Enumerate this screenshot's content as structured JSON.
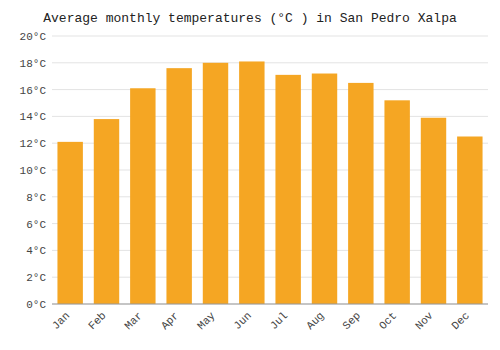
{
  "chart_data": {
    "type": "bar",
    "title": "Average monthly temperatures (°C ) in San Pedro Xalpa",
    "categories": [
      "Jan",
      "Feb",
      "Mar",
      "Apr",
      "May",
      "Jun",
      "Jul",
      "Aug",
      "Sep",
      "Oct",
      "Nov",
      "Dec"
    ],
    "values": [
      12.1,
      13.8,
      16.1,
      17.6,
      18.0,
      18.1,
      17.1,
      17.2,
      16.5,
      15.2,
      13.9,
      12.5
    ],
    "color": "#F5A623",
    "ylim": [
      0,
      20
    ],
    "yticks": [
      {
        "value": 0,
        "label": "0°C"
      },
      {
        "value": 2,
        "label": "2°C"
      },
      {
        "value": 4,
        "label": "4°C"
      },
      {
        "value": 6,
        "label": "6°C"
      },
      {
        "value": 8,
        "label": "8°C"
      },
      {
        "value": 10,
        "label": "10°C"
      },
      {
        "value": 12,
        "label": "12°C"
      },
      {
        "value": 14,
        "label": "14°C"
      },
      {
        "value": 16,
        "label": "16°C"
      },
      {
        "value": 18,
        "label": "18°C"
      },
      {
        "value": 20,
        "label": "20°C"
      }
    ],
    "grid": true
  }
}
